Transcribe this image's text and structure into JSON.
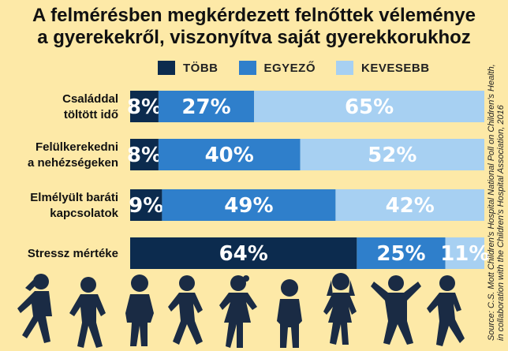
{
  "title": {
    "line1": "A felmérésben megkérdezett felnőttek véleménye",
    "line2": "a gyerekekről, viszonyítva saját gyerekkorukhoz"
  },
  "legend": [
    {
      "label": "TÖBB",
      "color": "#0c2b4e"
    },
    {
      "label": "EGYEZŐ",
      "color": "#2f7fcb"
    },
    {
      "label": "KEVESEBB",
      "color": "#a7d0f2"
    }
  ],
  "source": {
    "line1": "Source: C.S. Mott Children's Hospital National Poll on Children's Health,",
    "line2": "in collaboration with the Children's Hospital Association, 2016"
  },
  "chart_data": {
    "type": "bar",
    "orientation": "horizontal",
    "stacked": true,
    "categories": [
      [
        "Családdal",
        "töltött idő"
      ],
      [
        "Felülkerekedni",
        "a nehézségeken"
      ],
      [
        "Elmélyült baráti",
        "kapcsolatok"
      ],
      [
        "Stressz mértéke"
      ]
    ],
    "series": [
      {
        "name": "TÖBB",
        "values": [
          8,
          8,
          9,
          64
        ]
      },
      {
        "name": "EGYEZŐ",
        "values": [
          27,
          40,
          49,
          25
        ]
      },
      {
        "name": "KEVESEBB",
        "values": [
          65,
          52,
          42,
          11
        ]
      }
    ],
    "xlim": [
      0,
      100
    ],
    "legend_position": "top"
  }
}
